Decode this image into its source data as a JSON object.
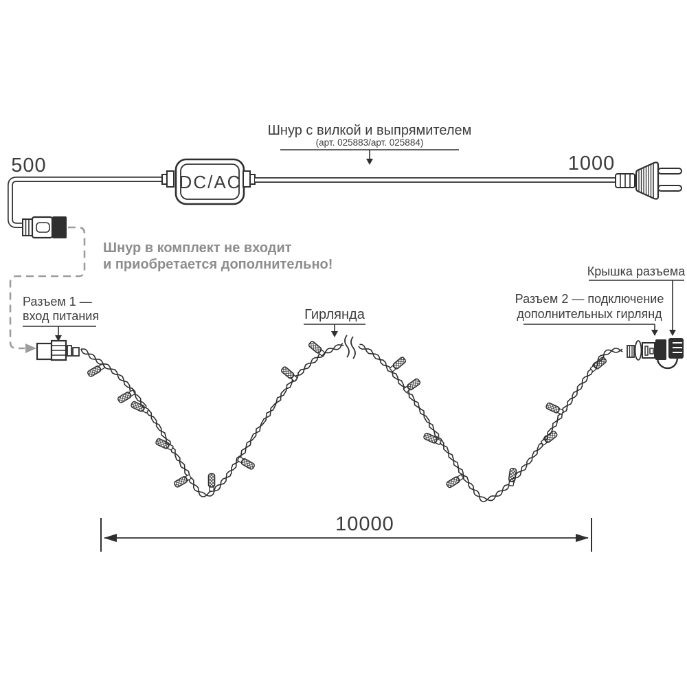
{
  "colors": {
    "line": "#2f2f2f",
    "text": "#3c3c3c",
    "note": "#8d8d8d",
    "dashed": "#9d9d9d"
  },
  "top": {
    "left_length": "500",
    "right_length": "1000",
    "converter": "DC/AC",
    "cord_label": "Шнур с вилкой и выпрямителем",
    "cord_art": "(арт. 025883/арт. 025884)"
  },
  "note": {
    "line1": "Шнур в комплект не входит",
    "line2": "и приобретается дополнительно!"
  },
  "labels": {
    "connector1_line1": "Разъем 1 —",
    "connector1_line2": "вход питания",
    "garland": "Гирлянда",
    "connector2_line1": "Разъем 2 — подключение",
    "connector2_line2": "дополнительных гирлянд",
    "cap": "Крышка разъема",
    "total_length": "10000"
  }
}
